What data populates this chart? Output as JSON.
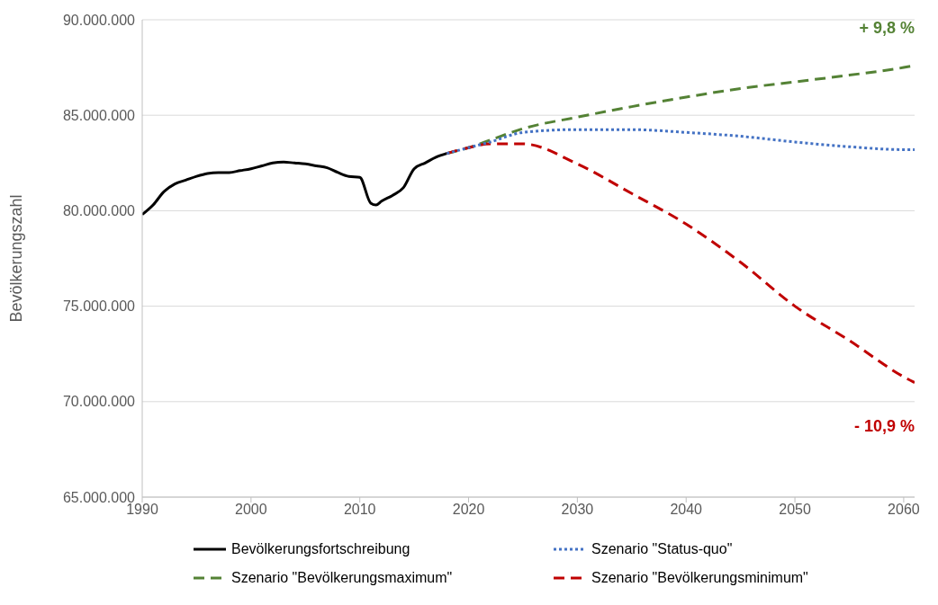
{
  "chart_data": {
    "type": "line",
    "ylabel": "Bevölkerungszahl",
    "xlim": [
      1990,
      2061
    ],
    "xticks": [
      1990,
      2000,
      2010,
      2020,
      2030,
      2040,
      2050,
      2060
    ],
    "ylim": [
      65000000,
      90000000
    ],
    "yticks": [
      {
        "value": 65000000,
        "label": "65.000.000"
      },
      {
        "value": 70000000,
        "label": "70.000.000"
      },
      {
        "value": 75000000,
        "label": "75.000.000"
      },
      {
        "value": 80000000,
        "label": "80.000.000"
      },
      {
        "value": 85000000,
        "label": "85.000.000"
      },
      {
        "value": 90000000,
        "label": "90.000.000"
      }
    ],
    "grid": "y",
    "legend": "bottom",
    "marker": "none",
    "series": [
      {
        "name": "Bevölkerungsfortschreibung",
        "color": "#000000",
        "line_style": "solid",
        "x": [
          1990,
          1991,
          1992,
          1993,
          1994,
          1995,
          1996,
          1997,
          1998,
          1999,
          2000,
          2001,
          2002,
          2003,
          2004,
          2005,
          2006,
          2007,
          2008,
          2009,
          2010,
          2011,
          2011.5,
          2012,
          2013,
          2014,
          2015,
          2016,
          2017,
          2018
        ],
        "values": [
          79800000,
          80300000,
          81000000,
          81400000,
          81600000,
          81800000,
          81950000,
          82000000,
          82000000,
          82100000,
          82200000,
          82350000,
          82500000,
          82550000,
          82500000,
          82450000,
          82350000,
          82250000,
          82000000,
          81800000,
          81750000,
          80400000,
          80300000,
          80500000,
          80800000,
          81200000,
          82200000,
          82500000,
          82800000,
          83000000
        ]
      },
      {
        "name": "Szenario \"Status-quo\"",
        "color": "#4472c4",
        "line_style": "dotted",
        "x": [
          2018,
          2020,
          2022,
          2025,
          2030,
          2035,
          2040,
          2045,
          2050,
          2055,
          2060,
          2061
        ],
        "values": [
          83000000,
          83300000,
          83600000,
          84100000,
          84250000,
          84250000,
          84100000,
          83900000,
          83600000,
          83350000,
          83200000,
          83200000
        ]
      },
      {
        "name": "Szenario \"Bevölkerungsmaximum\"",
        "color": "#548235",
        "line_style": "dashed",
        "x": [
          2018,
          2020,
          2022,
          2025,
          2030,
          2035,
          2040,
          2045,
          2050,
          2055,
          2060,
          2061
        ],
        "values": [
          83000000,
          83300000,
          83700000,
          84300000,
          84900000,
          85450000,
          85950000,
          86400000,
          86750000,
          87100000,
          87500000,
          87600000
        ]
      },
      {
        "name": "Szenario \"Bevölkerungsminimum\"",
        "color": "#c00000",
        "line_style": "dashed",
        "x": [
          2018,
          2020,
          2022,
          2025,
          2030,
          2035,
          2040,
          2045,
          2050,
          2055,
          2060,
          2061
        ],
        "values": [
          83000000,
          83300000,
          83500000,
          83500000,
          82450000,
          80900000,
          79300000,
          77300000,
          75000000,
          73200000,
          71300000,
          71000000
        ]
      }
    ],
    "annotations": [
      "+ 9,8 %",
      "- 10,9 %"
    ]
  }
}
